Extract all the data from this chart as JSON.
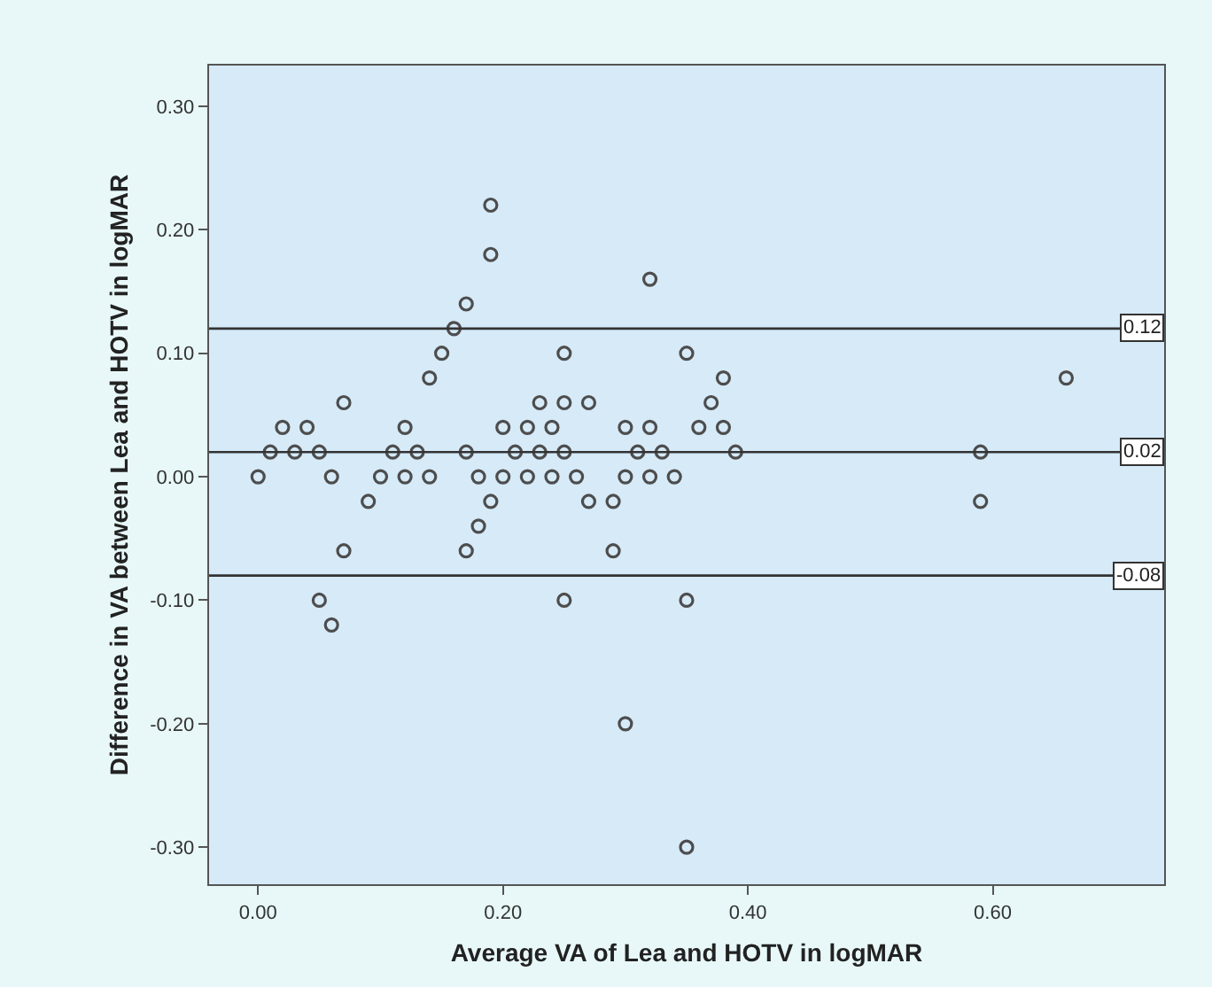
{
  "chart_data": {
    "type": "scatter",
    "xlabel": "Average VA of Lea and HOTV in logMAR",
    "ylabel": "Difference in VA between Lea and HOTV in logMAR",
    "x": [
      0.0,
      0.01,
      0.02,
      0.03,
      0.04,
      0.05,
      0.05,
      0.06,
      0.06,
      0.07,
      0.07,
      0.09,
      0.1,
      0.11,
      0.12,
      0.12,
      0.13,
      0.14,
      0.14,
      0.15,
      0.16,
      0.17,
      0.17,
      0.17,
      0.18,
      0.18,
      0.19,
      0.19,
      0.19,
      0.2,
      0.2,
      0.21,
      0.22,
      0.22,
      0.23,
      0.23,
      0.24,
      0.24,
      0.25,
      0.25,
      0.25,
      0.25,
      0.26,
      0.27,
      0.27,
      0.29,
      0.29,
      0.3,
      0.3,
      0.3,
      0.31,
      0.32,
      0.32,
      0.32,
      0.33,
      0.34,
      0.35,
      0.35,
      0.35,
      0.36,
      0.37,
      0.38,
      0.38,
      0.39,
      0.59,
      0.59,
      0.66
    ],
    "series": [
      {
        "color": "#4d4d4d",
        "marker": "circle",
        "values": [
          0.0,
          0.02,
          0.04,
          0.02,
          0.04,
          0.02,
          -0.1,
          0.0,
          -0.12,
          0.06,
          -0.06,
          -0.02,
          0.0,
          0.02,
          0.04,
          0.0,
          0.02,
          0.0,
          0.08,
          0.1,
          0.12,
          0.14,
          0.02,
          -0.06,
          0.0,
          -0.04,
          0.22,
          0.18,
          -0.02,
          0.04,
          0.0,
          0.02,
          0.04,
          0.0,
          0.06,
          0.02,
          0.04,
          0.0,
          0.1,
          0.06,
          0.02,
          -0.1,
          0.0,
          0.06,
          -0.02,
          -0.02,
          -0.06,
          0.04,
          0.0,
          -0.2,
          0.02,
          0.16,
          0.04,
          0.0,
          0.02,
          0.0,
          0.1,
          -0.1,
          -0.3,
          0.04,
          0.06,
          0.08,
          0.04,
          0.02,
          0.02,
          -0.02,
          0.08
        ]
      }
    ],
    "xlim": [
      -0.04,
      0.74
    ],
    "ylim": [
      -0.33,
      0.333
    ],
    "xticks": [
      {
        "value": 0,
        "label": "0.00"
      },
      {
        "value": 0.2,
        "label": "0.20"
      },
      {
        "value": 0.4,
        "label": "0.40"
      },
      {
        "value": 0.6,
        "label": "0.60"
      }
    ],
    "yticks": [
      {
        "value": -0.3,
        "label": "-0.30"
      },
      {
        "value": -0.2,
        "label": "-0.20"
      },
      {
        "value": -0.1,
        "label": "-0.10"
      },
      {
        "value": 0,
        "label": "0.00"
      },
      {
        "value": 0.1,
        "label": "0.10"
      },
      {
        "value": 0.2,
        "label": "0.20"
      },
      {
        "value": 0.3,
        "label": "0.30"
      }
    ],
    "ref_lines": [
      {
        "axis": "y",
        "value": 0.12,
        "label": "0.12",
        "color": "#333333",
        "line_style": "solid"
      },
      {
        "axis": "y",
        "value": 0.02,
        "label": "0.02",
        "color": "#333333",
        "line_style": "solid"
      },
      {
        "axis": "y",
        "value": -0.08,
        "label": "-0.08",
        "color": "#333333",
        "line_style": "solid"
      }
    ]
  }
}
